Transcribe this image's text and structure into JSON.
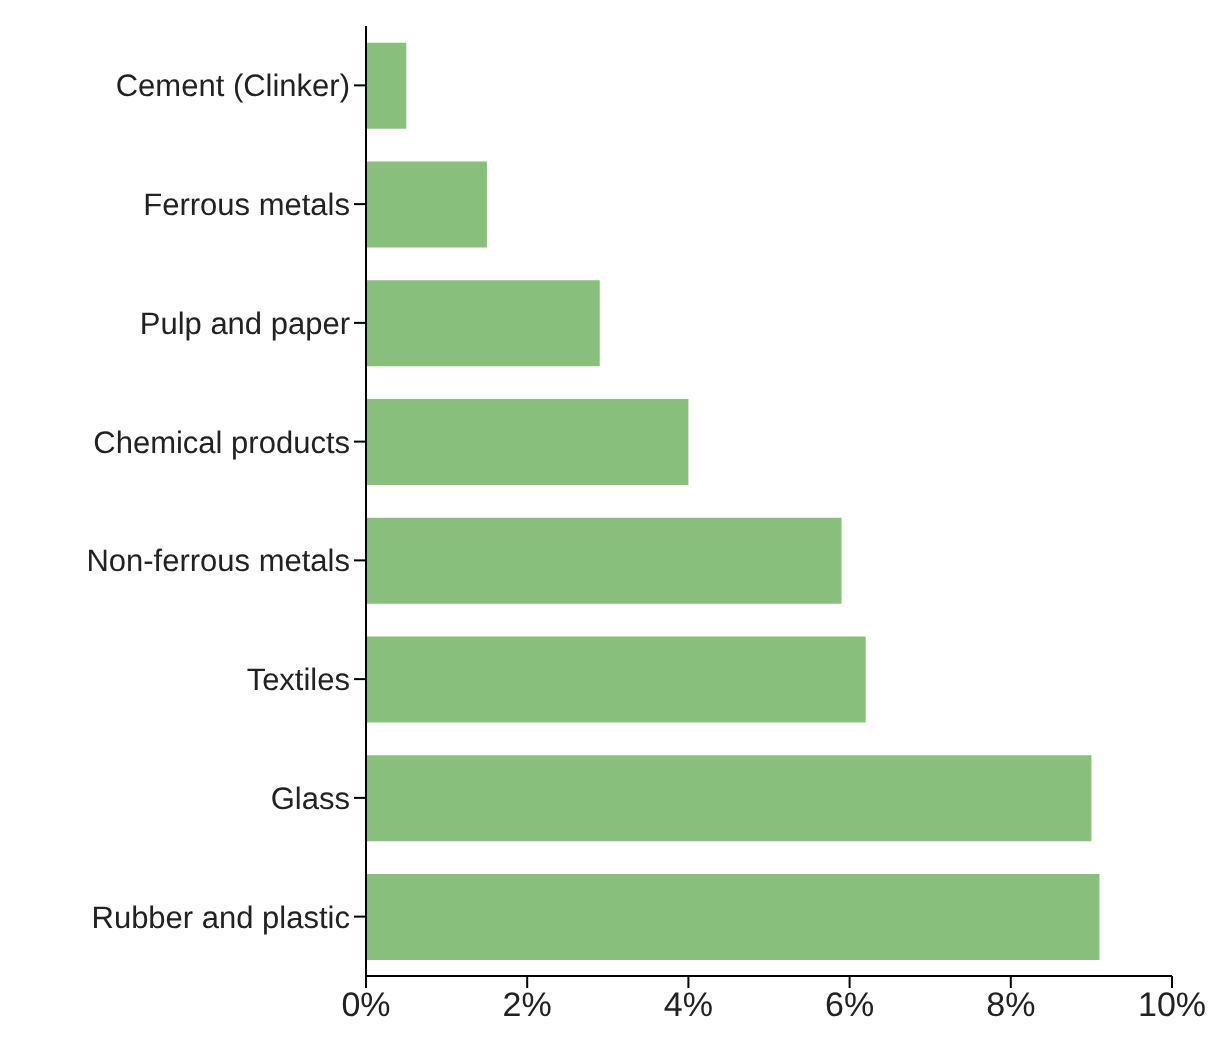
{
  "chart_data": {
    "type": "bar",
    "orientation": "horizontal",
    "categories": [
      "Cement (Clinker)",
      "Ferrous metals",
      "Pulp and paper",
      "Chemical products",
      "Non-ferrous metals",
      "Textiles",
      "Glass",
      "Rubber and plastic"
    ],
    "values": [
      0.5,
      1.5,
      2.9,
      4.0,
      5.9,
      6.2,
      9.0,
      9.1
    ],
    "color": "#88bf7d",
    "xlim": [
      0,
      10
    ],
    "xticks": [
      {
        "value": 0,
        "label": "0%"
      },
      {
        "value": 2,
        "label": "2%"
      },
      {
        "value": 4,
        "label": "4%"
      },
      {
        "value": 6,
        "label": "6%"
      },
      {
        "value": 8,
        "label": "8%"
      },
      {
        "value": 10,
        "label": "10%"
      }
    ],
    "grid": false
  }
}
